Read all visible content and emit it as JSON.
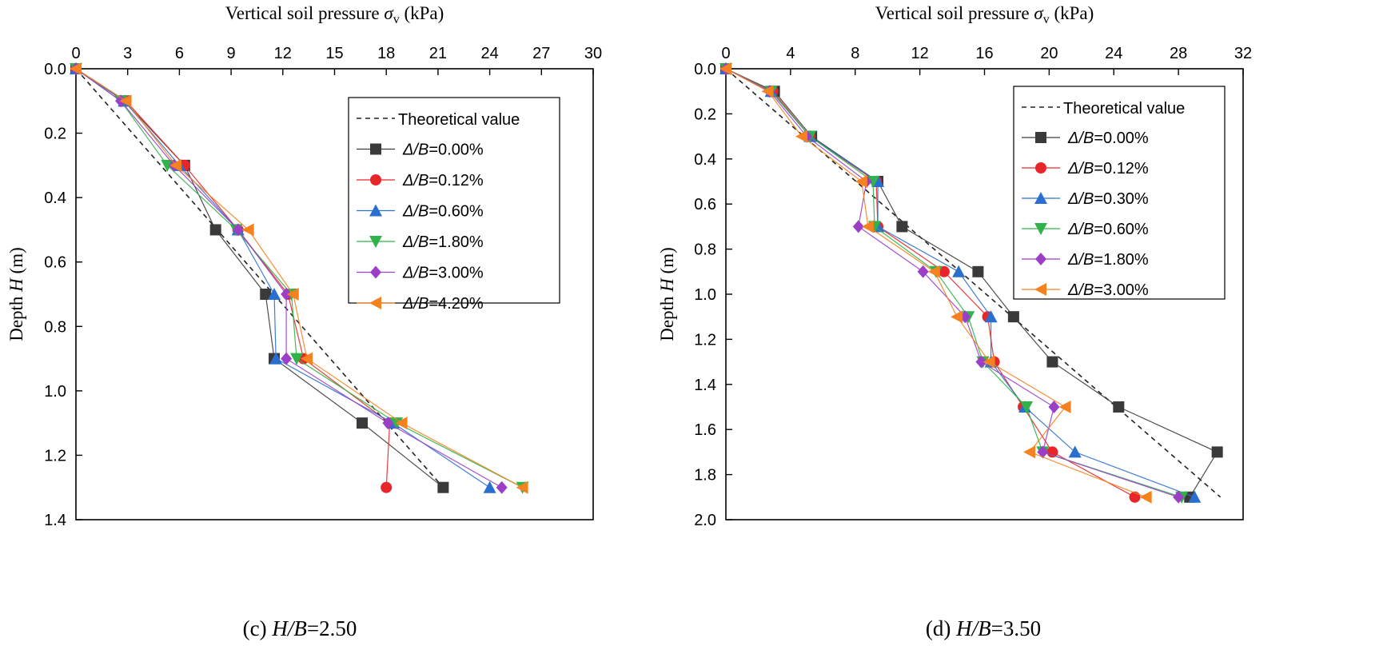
{
  "chart_data": [
    {
      "type": "line",
      "panel": "c",
      "caption": "(c) H/B=2.50",
      "caption_prefix": "(c) ",
      "caption_var": "H/B",
      "caption_value": "=2.50",
      "xlabel": "Vertical soil pressure  σv (kPa)",
      "xlabel_main": "Vertical soil pressure  ",
      "xlabel_symbol": "σ",
      "xlabel_sub": "v",
      "xlabel_unit": " (kPa)",
      "ylabel": "Depth H (m)",
      "ylabel_main": "Depth ",
      "ylabel_var": "H",
      "ylabel_unit": " (m)",
      "xlim": [
        0,
        30
      ],
      "ylim": [
        0,
        1.4
      ],
      "xticks": [
        0,
        3,
        6,
        9,
        12,
        15,
        18,
        21,
        24,
        27,
        30
      ],
      "xtick_labels": [
        "0",
        "3",
        "6",
        "9",
        "12",
        "15",
        "18",
        "21",
        "24",
        "27",
        "30"
      ],
      "yticks": [
        0,
        0.2,
        0.4,
        0.6,
        0.8,
        1.0,
        1.2,
        1.4
      ],
      "ytick_labels": [
        "0.0",
        "0.2",
        "0.4",
        "0.6",
        "0.8",
        "1.0",
        "1.2",
        "1.4"
      ],
      "x_axis_position": "top",
      "y_inverted": true,
      "legend_position": "top-right",
      "theoretical": {
        "name": "Theoretical value",
        "x": [
          0,
          21.3
        ],
        "y": [
          0,
          1.3
        ]
      },
      "series": [
        {
          "name": "Δ/B=0.00%",
          "label_var": "Δ/B",
          "label_value": "=0.00%",
          "marker": "square",
          "color": "#3a3a3a",
          "x": [
            0,
            2.8,
            6.3,
            8.1,
            11.0,
            11.5,
            16.6,
            21.3
          ],
          "y": [
            0,
            0.1,
            0.3,
            0.5,
            0.7,
            0.9,
            1.1,
            1.3
          ]
        },
        {
          "name": "Δ/B=0.12%",
          "label_var": "Δ/B",
          "label_value": "=0.12%",
          "marker": "circle",
          "color": "#e8262a",
          "x": [
            0,
            2.9,
            6.3,
            9.4,
            12.3,
            13.2,
            18.2,
            18.0
          ],
          "y": [
            0,
            0.1,
            0.3,
            0.5,
            0.7,
            0.9,
            1.1,
            1.3
          ]
        },
        {
          "name": "Δ/B=0.60%",
          "label_var": "Δ/B",
          "label_value": "=0.60%",
          "marker": "triangle-up",
          "color": "#2a6fcf",
          "x": [
            0,
            2.8,
            6.0,
            9.4,
            11.5,
            11.6,
            18.4,
            24.0
          ],
          "y": [
            0,
            0.1,
            0.3,
            0.5,
            0.7,
            0.9,
            1.1,
            1.3
          ]
        },
        {
          "name": "Δ/B=1.80%",
          "label_var": "Δ/B",
          "label_value": "=1.80%",
          "marker": "triangle-down",
          "color": "#2fb34a",
          "x": [
            0,
            2.6,
            5.3,
            9.3,
            12.5,
            12.8,
            18.6,
            25.9
          ],
          "y": [
            0,
            0.1,
            0.3,
            0.5,
            0.7,
            0.9,
            1.1,
            1.3
          ]
        },
        {
          "name": "Δ/B=3.00%",
          "label_var": "Δ/B",
          "label_value": "=3.00%",
          "marker": "diamond",
          "color": "#9b3fc6",
          "x": [
            0,
            2.6,
            5.7,
            9.4,
            12.2,
            12.2,
            18.1,
            24.7
          ],
          "y": [
            0,
            0.1,
            0.3,
            0.5,
            0.7,
            0.9,
            1.1,
            1.3
          ]
        },
        {
          "name": "Δ/B=4.20%",
          "label_var": "Δ/B",
          "label_value": "=4.20%",
          "marker": "triangle-left",
          "color": "#f5821f",
          "x": [
            0,
            2.9,
            5.8,
            10.0,
            12.6,
            13.4,
            18.9,
            25.9
          ],
          "y": [
            0,
            0.1,
            0.3,
            0.5,
            0.7,
            0.9,
            1.1,
            1.3
          ]
        }
      ]
    },
    {
      "type": "line",
      "panel": "d",
      "caption": "(d) H/B=3.50",
      "caption_prefix": "(d) ",
      "caption_var": "H/B",
      "caption_value": "=3.50",
      "xlabel": "Vertical soil pressure  σv (kPa)",
      "xlabel_main": "Vertical soil pressure  ",
      "xlabel_symbol": "σ",
      "xlabel_sub": "v",
      "xlabel_unit": " (kPa)",
      "ylabel": "Depth H (m)",
      "ylabel_main": "Depth ",
      "ylabel_var": "H",
      "ylabel_unit": " (m)",
      "xlim": [
        0,
        32
      ],
      "ylim": [
        0,
        2.0
      ],
      "xticks": [
        0,
        4,
        8,
        12,
        16,
        20,
        24,
        28,
        32
      ],
      "xtick_labels": [
        "0",
        "4",
        "8",
        "12",
        "16",
        "20",
        "24",
        "28",
        "32"
      ],
      "yticks": [
        0,
        0.2,
        0.4,
        0.6,
        0.8,
        1.0,
        1.2,
        1.4,
        1.6,
        1.8,
        2.0
      ],
      "ytick_labels": [
        "0.0",
        "0.2",
        "0.4",
        "0.6",
        "0.8",
        "1.0",
        "1.2",
        "1.4",
        "1.6",
        "1.8",
        "2.0"
      ],
      "x_axis_position": "top",
      "y_inverted": true,
      "legend_position": "top-right",
      "theoretical": {
        "name": "Theoretical value",
        "x": [
          0,
          30.6
        ],
        "y": [
          0,
          1.9
        ]
      },
      "series": [
        {
          "name": "Δ/B=0.00%",
          "label_var": "Δ/B",
          "label_value": "=0.00%",
          "marker": "square",
          "color": "#3a3a3a",
          "x": [
            0,
            3.0,
            5.3,
            9.4,
            10.9,
            15.6,
            17.8,
            20.2,
            24.3,
            30.4,
            28.7
          ],
          "y": [
            0,
            0.1,
            0.3,
            0.5,
            0.7,
            0.9,
            1.1,
            1.3,
            1.5,
            1.7,
            1.9
          ]
        },
        {
          "name": "Δ/B=0.12%",
          "label_var": "Δ/B",
          "label_value": "=0.12%",
          "marker": "circle",
          "color": "#e8262a",
          "x": [
            0,
            2.9,
            5.2,
            9.3,
            9.4,
            13.5,
            16.2,
            16.6,
            18.4,
            20.2,
            25.3
          ],
          "y": [
            0,
            0.1,
            0.3,
            0.5,
            0.7,
            0.9,
            1.1,
            1.3,
            1.5,
            1.7,
            1.9
          ]
        },
        {
          "name": "Δ/B=0.30%",
          "label_var": "Δ/B",
          "label_value": "=0.30%",
          "marker": "triangle-up",
          "color": "#2a6fcf",
          "x": [
            0,
            2.8,
            5.2,
            9.4,
            9.4,
            14.4,
            16.4,
            16.4,
            18.5,
            21.6,
            29.0
          ],
          "y": [
            0,
            0.1,
            0.3,
            0.5,
            0.7,
            0.9,
            1.1,
            1.3,
            1.5,
            1.7,
            1.9
          ]
        },
        {
          "name": "Δ/B=0.60%",
          "label_var": "Δ/B",
          "label_value": "=0.60%",
          "marker": "triangle-down",
          "color": "#2fb34a",
          "x": [
            0,
            2.8,
            5.2,
            9.1,
            9.2,
            13.0,
            15.0,
            15.9,
            18.6,
            19.6,
            28.2
          ],
          "y": [
            0,
            0.1,
            0.3,
            0.5,
            0.7,
            0.9,
            1.1,
            1.3,
            1.5,
            1.7,
            1.9
          ]
        },
        {
          "name": "Δ/B=1.80%",
          "label_var": "Δ/B",
          "label_value": "=1.80%",
          "marker": "diamond",
          "color": "#9b3fc6",
          "x": [
            0,
            2.7,
            5.0,
            8.7,
            8.2,
            12.2,
            14.8,
            15.8,
            20.3,
            19.6,
            28.0
          ],
          "y": [
            0,
            0.1,
            0.3,
            0.5,
            0.7,
            0.9,
            1.1,
            1.3,
            1.5,
            1.7,
            1.9
          ]
        },
        {
          "name": "Δ/B=3.00%",
          "label_var": "Δ/B",
          "label_value": "=3.00%",
          "marker": "triangle-left",
          "color": "#f5821f",
          "x": [
            0,
            2.6,
            4.7,
            8.4,
            8.8,
            12.9,
            14.3,
            16.3,
            21.0,
            18.8,
            26.0
          ],
          "y": [
            0,
            0.1,
            0.3,
            0.5,
            0.7,
            0.9,
            1.1,
            1.3,
            1.5,
            1.7,
            1.9
          ]
        }
      ]
    }
  ]
}
